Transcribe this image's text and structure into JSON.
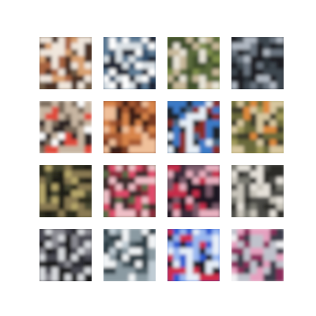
{
  "figure": {
    "background": "#ffffff",
    "rows": 4,
    "cols": 4
  },
  "samples": [
    {
      "palette": [
        "#6f5a45",
        "#d9a070",
        "#4a2f22",
        "#f0e6dc",
        "#a86440"
      ]
    },
    {
      "palette": [
        "#2f4d6a",
        "#dce2e6",
        "#1c2430",
        "#5f7d96",
        "#ffffff"
      ]
    },
    {
      "palette": [
        "#7f8f4a",
        "#e8e4d8",
        "#5a6a3a",
        "#c8b89a",
        "#3f4f2a"
      ]
    },
    {
      "palette": [
        "#2a3038",
        "#6a7480",
        "#1a1e24",
        "#b0b8c2",
        "#3e4650"
      ]
    },
    {
      "palette": [
        "#ffffff",
        "#2a2420",
        "#7a6a5a",
        "#c8b6a2",
        "#e04a3a"
      ]
    },
    {
      "palette": [
        "#7a3a22",
        "#d8844a",
        "#3a1c12",
        "#f0c09a",
        "#a85a30"
      ]
    },
    {
      "palette": [
        "#4a6a8a",
        "#e6eef6",
        "#1c2228",
        "#3a7ac8",
        "#8a2a22"
      ]
    },
    {
      "palette": [
        "#a09a5a",
        "#e08a3a",
        "#3a3a2a",
        "#d8c8a0",
        "#6a6a3a"
      ]
    },
    {
      "palette": [
        "#4a4a32",
        "#b8a86a",
        "#1a1a14",
        "#8a7a52",
        "#2a2a1c"
      ]
    },
    {
      "palette": [
        "#5a6a4a",
        "#e04a6a",
        "#3a2a2a",
        "#f0c0c8",
        "#8a2a3a"
      ]
    },
    {
      "palette": [
        "#3a2a3a",
        "#c82a4a",
        "#1a1420",
        "#e8b0c0",
        "#7a5a6a"
      ]
    },
    {
      "palette": [
        "#7a7a72",
        "#c8c4ba",
        "#4a4a44",
        "#e6e2da",
        "#2a2a26"
      ]
    },
    {
      "palette": [
        "#2a2a30",
        "#8a8a92",
        "#141418",
        "#d8dade",
        "#4a4a52"
      ]
    },
    {
      "palette": [
        "#c0ccd4",
        "#f2f4f6",
        "#4a5a62",
        "#8a9aa2",
        "#2a3a42"
      ]
    },
    {
      "palette": [
        "#2a5ad0",
        "#9ab8f0",
        "#1a1a28",
        "#d02a4a",
        "#e6eef8"
      ]
    },
    {
      "palette": [
        "#f2f2f4",
        "#c0c2cc",
        "#8a2a5a",
        "#3a3a4a",
        "#e6a0c0"
      ]
    }
  ]
}
